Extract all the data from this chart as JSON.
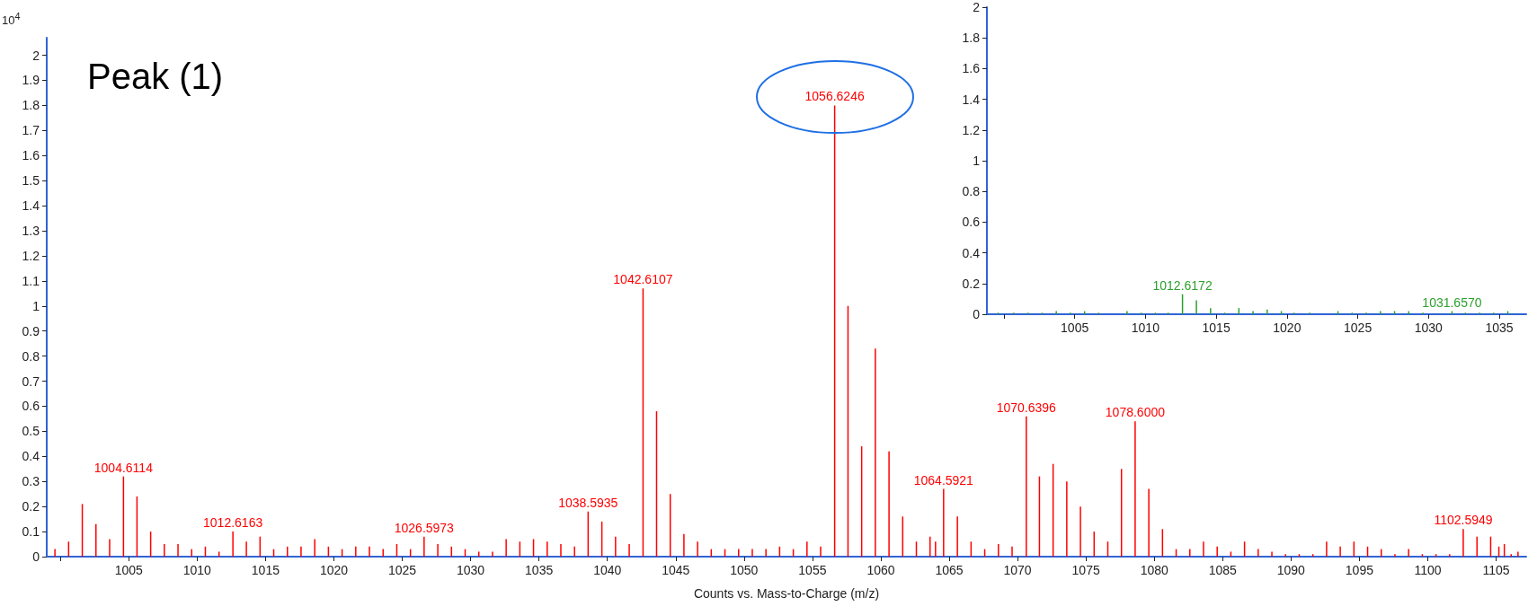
{
  "chart_data": [
    {
      "type": "bar",
      "title": "Peak (1)",
      "xlabel": "Counts vs. Mass-to-Charge (m/z)",
      "ylabel": "10$^{4}$",
      "color": "#ff0000",
      "x": [
        999.6,
        1000.6,
        1001.6,
        1002.6,
        1003.6,
        1004.6114,
        1005.6,
        1006.6,
        1007.6,
        1008.6,
        1009.6,
        1010.6,
        1011.6,
        1012.6163,
        1013.6,
        1014.6,
        1015.6,
        1016.6,
        1017.6,
        1018.6,
        1019.6,
        1020.6,
        1021.6,
        1022.6,
        1023.6,
        1024.6,
        1025.6,
        1026.5973,
        1027.6,
        1028.6,
        1029.6,
        1030.6,
        1031.6,
        1032.6,
        1033.6,
        1034.6,
        1035.6,
        1036.6,
        1037.6,
        1038.5935,
        1039.6,
        1040.6,
        1041.6,
        1042.6107,
        1043.6,
        1044.6,
        1045.6,
        1046.6,
        1047.6,
        1048.6,
        1049.6,
        1050.6,
        1051.6,
        1052.6,
        1053.6,
        1054.6,
        1055.6,
        1056.6246,
        1057.6,
        1058.6,
        1059.6,
        1060.6,
        1061.6,
        1062.6,
        1063.6,
        1064.0,
        1064.5921,
        1065.6,
        1066.6,
        1067.6,
        1068.6,
        1069.6,
        1070.6396,
        1071.6,
        1072.6,
        1073.6,
        1074.6,
        1075.6,
        1076.6,
        1077.6,
        1078.6,
        1079.6,
        1080.6,
        1081.6,
        1082.6,
        1083.6,
        1084.6,
        1085.6,
        1086.6,
        1087.6,
        1088.6,
        1089.6,
        1090.6,
        1091.6,
        1092.6,
        1093.6,
        1094.6,
        1095.6,
        1096.6,
        1097.6,
        1098.6,
        1099.6,
        1100.6,
        1101.6,
        1102.5949,
        1103.6,
        1104.6,
        1105.2,
        1105.6,
        1106.1,
        1106.6
      ],
      "values": [
        0.03,
        0.06,
        0.21,
        0.13,
        0.07,
        0.32,
        0.24,
        0.1,
        0.05,
        0.05,
        0.03,
        0.04,
        0.02,
        0.1,
        0.06,
        0.08,
        0.03,
        0.04,
        0.04,
        0.07,
        0.04,
        0.03,
        0.04,
        0.04,
        0.03,
        0.05,
        0.03,
        0.08,
        0.05,
        0.04,
        0.03,
        0.02,
        0.02,
        0.07,
        0.06,
        0.07,
        0.06,
        0.05,
        0.04,
        0.18,
        0.14,
        0.08,
        0.05,
        1.07,
        0.58,
        0.25,
        0.09,
        0.06,
        0.03,
        0.03,
        0.03,
        0.03,
        0.03,
        0.04,
        0.03,
        0.06,
        0.04,
        1.8,
        1.0,
        0.44,
        0.83,
        0.42,
        0.16,
        0.06,
        0.08,
        0.06,
        0.27,
        0.16,
        0.06,
        0.03,
        0.05,
        0.04,
        0.56,
        0.32,
        0.37,
        0.3,
        0.2,
        0.1,
        0.06,
        0.35,
        0.54,
        0.27,
        0.11,
        0.03,
        0.03,
        0.06,
        0.04,
        0.02,
        0.06,
        0.03,
        0.02,
        0.01,
        0.01,
        0.01,
        0.06,
        0.04,
        0.06,
        0.04,
        0.03,
        0.01,
        0.03,
        0.01,
        0.01,
        0.01,
        0.11,
        0.08,
        0.08,
        0.04,
        0.05,
        0.01,
        0.02
      ],
      "xlim": [
        999,
        1107.2
      ],
      "xticks": [
        {
          "value": 1000,
          "label": null
        },
        1005,
        1010,
        1015,
        1020,
        1025,
        1030,
        1035,
        1040,
        1045,
        1050,
        1055,
        1060,
        1065,
        1070,
        1075,
        1080,
        1085,
        1090,
        1095,
        1100,
        1105
      ],
      "ylim": [
        0,
        2.07
      ],
      "yticks": [
        0,
        0.1,
        0.2,
        0.3,
        0.4,
        0.5,
        0.6,
        0.7,
        0.8,
        0.9,
        1,
        1.1,
        1.2,
        1.3,
        1.4,
        1.5,
        1.6,
        1.7,
        1.8,
        1.9,
        2
      ],
      "annotations": [
        {
          "text": "1004.6114",
          "x": 1004.6114,
          "y": 0.32
        },
        {
          "text": "1012.6163",
          "x": 1012.6163,
          "y": 0.1
        },
        {
          "text": "1026.5973",
          "x": 1026.5973,
          "y": 0.08
        },
        {
          "text": "1038.5935",
          "x": 1038.5935,
          "y": 0.18
        },
        {
          "text": "1042.6107",
          "x": 1042.6107,
          "y": 1.07
        },
        {
          "text": "1056.6246",
          "x": 1056.6246,
          "y": 1.8
        },
        {
          "text": "1064.5921",
          "x": 1064.5921,
          "y": 0.27
        },
        {
          "text": "1070.6396",
          "x": 1070.6396,
          "y": 0.56
        },
        {
          "text": "1078.6000",
          "x": 1078.6,
          "y": 0.54
        },
        {
          "text": "1102.5949",
          "x": 1102.5949,
          "y": 0.11
        }
      ]
    },
    {
      "type": "bar",
      "color": "#2ca02c",
      "x": [
        999.6,
        1000.7,
        1001.7,
        1002.7,
        1003.7,
        1004.7,
        1005.7,
        1006.7,
        1008.7,
        1009.7,
        1010.7,
        1011.6,
        1012.6172,
        1013.6,
        1014.6,
        1015.6,
        1016.6,
        1017.6,
        1018.6,
        1019.6,
        1020.5,
        1021.6,
        1023.6,
        1024.6,
        1025.6,
        1026.6,
        1027.6,
        1028.6,
        1029.6,
        1031.657,
        1032.6,
        1033.6,
        1034.6,
        1035.6
      ],
      "values": [
        0.01,
        0.01,
        0.01,
        0.01,
        0.02,
        0.01,
        0.02,
        0.01,
        0.02,
        0.01,
        0.01,
        0.01,
        0.13,
        0.09,
        0.04,
        0.01,
        0.04,
        0.02,
        0.03,
        0.02,
        0.01,
        0.01,
        0.02,
        0.01,
        0.01,
        0.02,
        0.02,
        0.02,
        0.01,
        0.02,
        0.01,
        0.01,
        0.01,
        0.02
      ],
      "xlim": [
        998.8,
        1036.9
      ],
      "xticks": [
        {
          "value": 1000,
          "label": null
        },
        1005,
        1010,
        1015,
        1020,
        1025,
        1030,
        1035
      ],
      "ylim": [
        0,
        2
      ],
      "yticks": [
        0,
        0.2,
        0.4,
        0.6,
        0.8,
        1,
        1.2,
        1.4,
        1.6,
        1.8,
        2
      ],
      "annotations": [
        {
          "text": "1012.6172",
          "x": 1012.6172,
          "y": 0.13
        },
        {
          "text": "1031.6570",
          "x": 1031.657,
          "y": 0.02
        }
      ]
    }
  ]
}
